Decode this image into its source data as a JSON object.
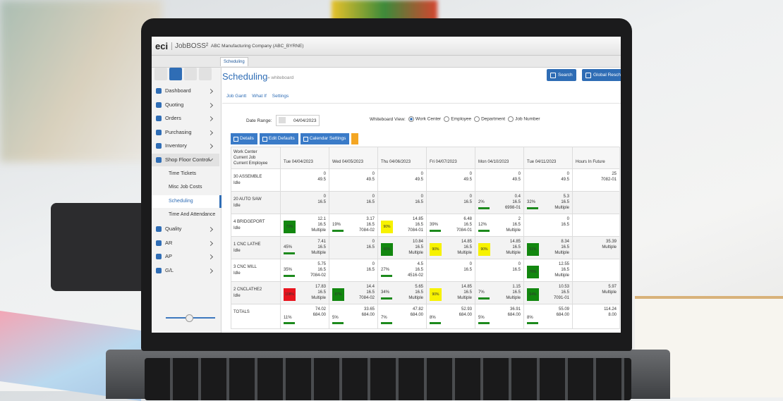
{
  "header": {
    "logo": "eci",
    "product": "JobBOSS²",
    "company": "ABC Manufacturing Company  (ABC_BYRNE)"
  },
  "tab": "Scheduling",
  "page": {
    "title": "Scheduling",
    "breadcrumb": "» whiteboard",
    "buttons": [
      "Search",
      "Global Resch"
    ]
  },
  "subnav": [
    "Job Gantt",
    "What If",
    "Settings"
  ],
  "sidebar": [
    {
      "label": "Dashboard",
      "arrow": true
    },
    {
      "label": "Quoting",
      "arrow": true
    },
    {
      "label": "Orders",
      "arrow": true
    },
    {
      "label": "Purchasing",
      "arrow": true
    },
    {
      "label": "Inventory",
      "arrow": true
    },
    {
      "label": "Shop Floor Control",
      "arrow": true,
      "open": true
    },
    {
      "label": "Time Tickets",
      "sub": true
    },
    {
      "label": "Misc Job Costs",
      "sub": true
    },
    {
      "label": "Scheduling",
      "sub": true,
      "active": true
    },
    {
      "label": "Time And Attendance",
      "sub": true
    },
    {
      "label": "Quality",
      "arrow": true
    },
    {
      "label": "AR",
      "arrow": true
    },
    {
      "label": "AP",
      "arrow": true
    },
    {
      "label": "G/L",
      "arrow": true
    }
  ],
  "filters": {
    "date_label": "Date Range:",
    "date": "04/04/2023",
    "view_label": "Whiteboard View:",
    "views": [
      "Work Center",
      "Employee",
      "Department",
      "Job Number"
    ],
    "selected_view": 0
  },
  "toolbar": [
    "Details",
    "Edit Defaults",
    "Calendar Settings"
  ],
  "table": {
    "header": [
      "Work Center",
      "Current Job",
      "Current Employee"
    ],
    "columns": [
      "Tue 04/04/2023",
      "Wed 04/05/2023",
      "Thu 04/06/2023",
      "Fri 04/07/2023",
      "Mon 04/10/2023",
      "Tue 04/11/2023",
      "Hours In Future"
    ],
    "rows": [
      {
        "name": "30 ASSEMBLE",
        "status": "Idle",
        "cells": [
          {
            "hours": "0",
            "capacity": "49.5"
          },
          {
            "hours": "0",
            "capacity": "49.5"
          },
          {
            "hours": "0",
            "capacity": "49.5"
          },
          {
            "hours": "0",
            "capacity": "49.5"
          },
          {
            "hours": "0",
            "capacity": "49.5"
          },
          {
            "hours": "0",
            "capacity": "49.5"
          },
          {
            "hours": "25",
            "job": "7082-01"
          }
        ]
      },
      {
        "name": "20 AUTO SAW",
        "status": "Idle",
        "cells": [
          {
            "hours": "0",
            "capacity": "16.5"
          },
          {
            "hours": "0",
            "capacity": "16.5"
          },
          {
            "hours": "0",
            "capacity": "16.5"
          },
          {
            "hours": "0",
            "capacity": "16.5"
          },
          {
            "pct": "2%",
            "hours": "0.4",
            "capacity": "16.5",
            "job": "6998-01"
          },
          {
            "pct": "32%",
            "hours": "5.3",
            "capacity": "16.5",
            "job": "Multiple"
          },
          null
        ]
      },
      {
        "name": "4 BRIDGEPORT",
        "status": "Idle",
        "cells": [
          {
            "pct": "73%",
            "highlight": "#12870f",
            "hours": "12.1",
            "capacity": "16.5",
            "job": "Multiple"
          },
          {
            "pct": "19%",
            "hours": "3.17",
            "capacity": "16.5",
            "job": "7084-02"
          },
          {
            "pct": "90%",
            "highlight": "#f7f200",
            "hours": "14.85",
            "capacity": "16.5",
            "job": "7084-01"
          },
          {
            "pct": "39%",
            "hours": "6.48",
            "capacity": "16.5",
            "job": "7084-01"
          },
          {
            "pct": "12%",
            "hours": "2",
            "capacity": "16.5",
            "job": "Multiple"
          },
          {
            "hours": "0",
            "capacity": "16.5"
          },
          null
        ]
      },
      {
        "name": "1 CNC LATHE",
        "status": "Idle",
        "cells": [
          {
            "pct": "45%",
            "hours": "7.41",
            "capacity": "16.5",
            "job": "Multiple"
          },
          {
            "hours": "0",
            "capacity": "16.5"
          },
          {
            "pct": "66%",
            "highlight": "#12870f",
            "hours": "10.84",
            "capacity": "16.5",
            "job": "Multiple"
          },
          {
            "pct": "90%",
            "highlight": "#f7f200",
            "hours": "14.85",
            "capacity": "16.5",
            "job": "Multiple"
          },
          {
            "pct": "90%",
            "highlight": "#f7f200",
            "hours": "14.85",
            "capacity": "16.5",
            "job": "Multiple"
          },
          {
            "pct": "51%",
            "highlight": "#12870f",
            "hours": "8.34",
            "capacity": "16.5",
            "job": "Multiple"
          },
          {
            "hours": "35.39",
            "job": "Multiple"
          }
        ]
      },
      {
        "name": "3 CNC MILL",
        "status": "Idle",
        "cells": [
          {
            "pct": "35%",
            "hours": "5.75",
            "capacity": "16.5",
            "job": "7084-02"
          },
          {
            "hours": "0",
            "capacity": "16.5"
          },
          {
            "pct": "27%",
            "hours": "4.5",
            "capacity": "16.5",
            "job": "4516-02"
          },
          {
            "hours": "0",
            "capacity": "16.5"
          },
          {
            "hours": "0",
            "capacity": "16.5"
          },
          {
            "pct": "76%",
            "highlight": "#12870f",
            "hours": "12.55",
            "capacity": "16.5",
            "job": "Multiple"
          },
          null
        ]
      },
      {
        "name": "2 CNCLATHE2",
        "status": "Idle",
        "cells": [
          {
            "pct": "108%",
            "highlight": "#e8141e",
            "hours": "17.83",
            "capacity": "16.5",
            "job": "Multiple"
          },
          {
            "pct": "87%",
            "highlight": "#12870f",
            "hours": "14.4",
            "capacity": "16.5",
            "job": "7084-02"
          },
          {
            "pct": "34%",
            "hours": "5.65",
            "capacity": "16.5",
            "job": "Multiple"
          },
          {
            "pct": "90%",
            "highlight": "#f7f200",
            "hours": "14.85",
            "capacity": "16.5",
            "job": "Multiple"
          },
          {
            "pct": "7%",
            "hours": "1.15",
            "capacity": "16.5",
            "job": "Multiple"
          },
          {
            "pct": "64%",
            "highlight": "#12870f",
            "hours": "10.53",
            "capacity": "16.5",
            "job": "7091-01"
          },
          {
            "hours": "5.97",
            "job": "Multiple"
          }
        ]
      }
    ],
    "totals": {
      "label": "TOTALS",
      "cells": [
        {
          "pct": "11%",
          "hours": "74.02",
          "capacity": "684.00"
        },
        {
          "pct": "5%",
          "hours": "33.65",
          "capacity": "684.00"
        },
        {
          "pct": "7%",
          "hours": "47.82",
          "capacity": "684.00"
        },
        {
          "pct": "8%",
          "hours": "52.93",
          "capacity": "684.00"
        },
        {
          "pct": "5%",
          "hours": "36.91",
          "capacity": "684.00"
        },
        {
          "pct": "8%",
          "hours": "55.09",
          "capacity": "684.00"
        },
        {
          "hours": "114.24",
          "capacity": "8.00"
        }
      ]
    }
  }
}
